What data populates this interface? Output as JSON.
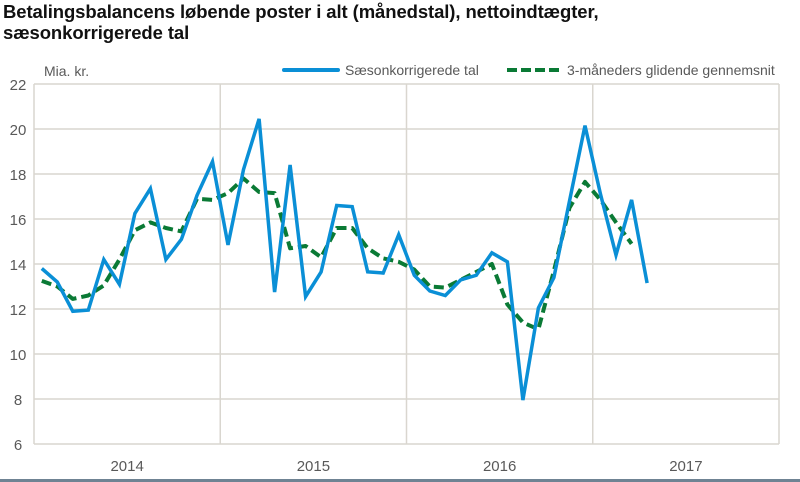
{
  "title_lines": [
    "Betalingsbalancens løbende poster i alt (månedstal), nettoindtægter,",
    "sæsonkorrigerede tal"
  ],
  "y_unit": "Mia. kr.",
  "legend": [
    {
      "label": "Sæsonkorrigerede tal",
      "style": "solid",
      "color": "#0a8fd6"
    },
    {
      "label": "3-måneders glidende gennemsnit",
      "style": "dashed",
      "color": "#0a7a35"
    }
  ],
  "colors": {
    "grid": "#d9d6cf",
    "axis_text": "#595959",
    "series1": "#0a8fd6",
    "series2": "#0a7a35"
  },
  "chart_data": {
    "type": "line",
    "title": "Betalingsbalancens løbende poster i alt (månedstal), nettoindtægter, sæsonkorrigerede tal",
    "xlabel": "",
    "ylabel": "Mia. kr.",
    "ylim": [
      6,
      22
    ],
    "yticks": [
      6,
      8,
      10,
      12,
      14,
      16,
      18,
      20,
      22
    ],
    "xtick_labels": [
      "2014",
      "2015",
      "2016",
      "2017"
    ],
    "grid": true,
    "legend_position": "top",
    "x": [
      "2014-01",
      "2014-02",
      "2014-03",
      "2014-04",
      "2014-05",
      "2014-06",
      "2014-07",
      "2014-08",
      "2014-09",
      "2014-10",
      "2014-11",
      "2014-12",
      "2015-01",
      "2015-02",
      "2015-03",
      "2015-04",
      "2015-05",
      "2015-06",
      "2015-07",
      "2015-08",
      "2015-09",
      "2015-10",
      "2015-11",
      "2015-12",
      "2016-01",
      "2016-02",
      "2016-03",
      "2016-04",
      "2016-05",
      "2016-06",
      "2016-07",
      "2016-08",
      "2016-09",
      "2016-10",
      "2016-11",
      "2016-12",
      "2017-01",
      "2017-02",
      "2017-03",
      "2017-04"
    ],
    "series": [
      {
        "name": "Sæsonkorrigerede tal",
        "values": [
          13.8,
          13.2,
          11.9,
          11.95,
          14.2,
          13.1,
          16.25,
          17.35,
          14.2,
          15.1,
          17.05,
          18.55,
          14.85,
          18.2,
          20.45,
          12.75,
          18.4,
          12.55,
          13.65,
          16.6,
          16.55,
          13.65,
          13.6,
          15.3,
          13.5,
          12.8,
          12.6,
          13.3,
          13.5,
          14.5,
          14.1,
          7.95,
          12.05,
          13.4,
          16.8,
          20.15,
          17.1,
          14.4,
          16.85,
          13.15
        ]
      },
      {
        "name": "3-måneders glidende gennemsnit",
        "values": [
          13.25,
          13.0,
          12.45,
          12.6,
          13.05,
          14.2,
          15.5,
          15.85,
          15.6,
          15.45,
          16.9,
          16.85,
          17.15,
          17.8,
          17.2,
          17.15,
          14.7,
          14.8,
          14.3,
          15.6,
          15.6,
          14.7,
          14.25,
          14.1,
          13.75,
          13.0,
          12.95,
          13.3,
          13.65,
          14.0,
          12.2,
          11.4,
          11.1,
          13.7,
          16.5,
          17.65,
          16.85,
          15.85,
          14.9,
          null
        ]
      }
    ]
  }
}
